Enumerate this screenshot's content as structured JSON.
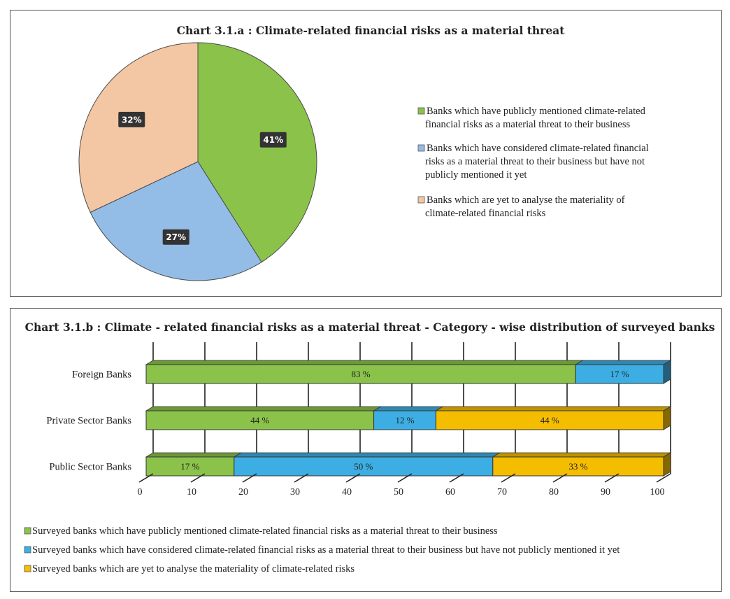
{
  "colors": {
    "green": "#8bc34a",
    "blue": "#3daee3",
    "light_blue": "#93bde6",
    "peach": "#f4c7a4",
    "yellow": "#f5bd00",
    "label_box": "#333333"
  },
  "chart_data": [
    {
      "type": "pie",
      "title": "Chart 3.1.a : Climate-related financial risks as a material threat",
      "legend_position": "right",
      "slices": [
        {
          "legend": "Banks which have publicly mentioned climate-related financial risks as a material threat to their business",
          "legend_lines": [
            "Banks which have publicly mentioned climate-related",
            "financial risks as a material threat to their business"
          ],
          "value": 41,
          "label": "41%",
          "color": "#8bc34a"
        },
        {
          "legend": "Banks which have considered climate-related financial risks as a material threat to their business but have not publicly mentioned it yet",
          "legend_lines": [
            "Banks which have considered climate-related financial",
            "risks as a  material threat to their business but have not",
            "publicly mentioned it  yet"
          ],
          "value": 27,
          "label": "27%",
          "color": "#93bde6"
        },
        {
          "legend": "Banks which are yet to analyse the materiality of climate-related financial risks",
          "legend_lines": [
            "Banks which are yet to analyse the materiality of",
            "climate-related  financial risks"
          ],
          "value": 32,
          "label": "32%",
          "color": "#f4c7a4"
        }
      ]
    },
    {
      "type": "bar",
      "orientation": "horizontal",
      "stacked": true,
      "title": "Chart 3.1.b : Climate - related financial risks as a material threat - Category - wise distribution of surveyed banks",
      "categories": [
        "Foreign Banks",
        "Private Sector Banks",
        "Public Sector Banks"
      ],
      "xlim": [
        0,
        100
      ],
      "x_ticks": [
        "0",
        "10",
        "20",
        "30",
        "40",
        "50",
        "60",
        "70",
        "80",
        "90",
        "100"
      ],
      "grid": true,
      "legend_position": "bottom",
      "series": [
        {
          "name": "Surveyed banks which have publicly mentioned climate-related financial risks as a material threat to their business",
          "color": "#8bc34a",
          "values": [
            83,
            44,
            17
          ],
          "labels": [
            "83 %",
            "44 %",
            "17 %"
          ]
        },
        {
          "name": "Surveyed banks which have considered climate-related financial risks as a material threat to their business but have not publicly mentioned it yet",
          "color": "#3daee3",
          "values": [
            17,
            12,
            50
          ],
          "labels": [
            "17 %",
            "12 %",
            "50 %"
          ]
        },
        {
          "name": "Surveyed banks which are yet to analyse the materiality of climate-related risks",
          "color": "#f5bd00",
          "values": [
            0,
            44,
            33
          ],
          "labels": [
            "",
            "44 %",
            "33 %"
          ]
        }
      ]
    }
  ]
}
